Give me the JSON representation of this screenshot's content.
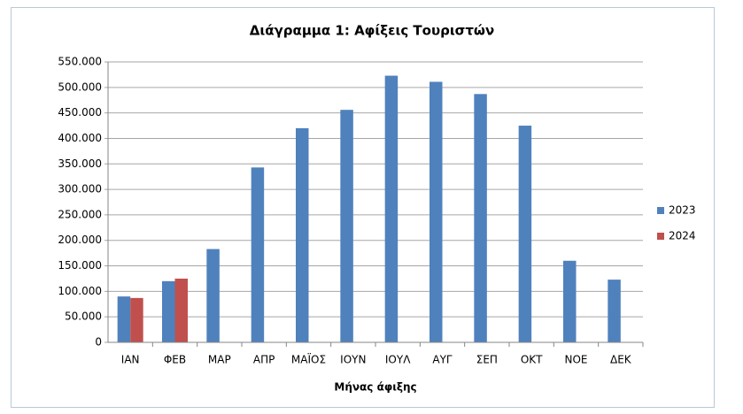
{
  "chart_data": {
    "type": "bar",
    "title": "Διάγραμμα 1: Αφίξεις Τουριστών",
    "x_label": "Μήνας άφιξης",
    "categories": [
      "ΙΑΝ",
      "ΦΕΒ",
      "ΜΑΡ",
      "ΑΠΡ",
      "ΜΑΪΟΣ",
      "ΙΟΥΝ",
      "ΙΟΥΛ",
      "ΑΥΓ",
      "ΣΕΠ",
      "ΟΚΤ",
      "ΝΟΕ",
      "ΔΕΚ"
    ],
    "series": [
      {
        "name": "2023",
        "color": "#4f81bd",
        "values": [
          90000,
          120000,
          183000,
          343000,
          420000,
          456000,
          523000,
          511000,
          487000,
          425000,
          160000,
          123000
        ]
      },
      {
        "name": "2024",
        "color": "#c0504d",
        "values": [
          87000,
          125000,
          null,
          null,
          null,
          null,
          null,
          null,
          null,
          null,
          null,
          null
        ]
      }
    ],
    "ylim": [
      0,
      550000
    ],
    "yticks": [
      0,
      {
        "value": 50000,
        "label": "50.000"
      },
      {
        "value": 100000,
        "label": "100.000"
      },
      {
        "value": 150000,
        "label": "150.000"
      },
      {
        "value": 200000,
        "label": "200.000"
      },
      {
        "value": 250000,
        "label": "250.000"
      },
      {
        "value": 300000,
        "label": "300.000"
      },
      {
        "value": 350000,
        "label": "350.000"
      },
      {
        "value": 400000,
        "label": "400.000"
      },
      {
        "value": 450000,
        "label": "450.000"
      },
      {
        "value": 500000,
        "label": "500.000"
      },
      {
        "value": 550000,
        "label": "550.000"
      }
    ],
    "grid": true,
    "legend": "right"
  }
}
